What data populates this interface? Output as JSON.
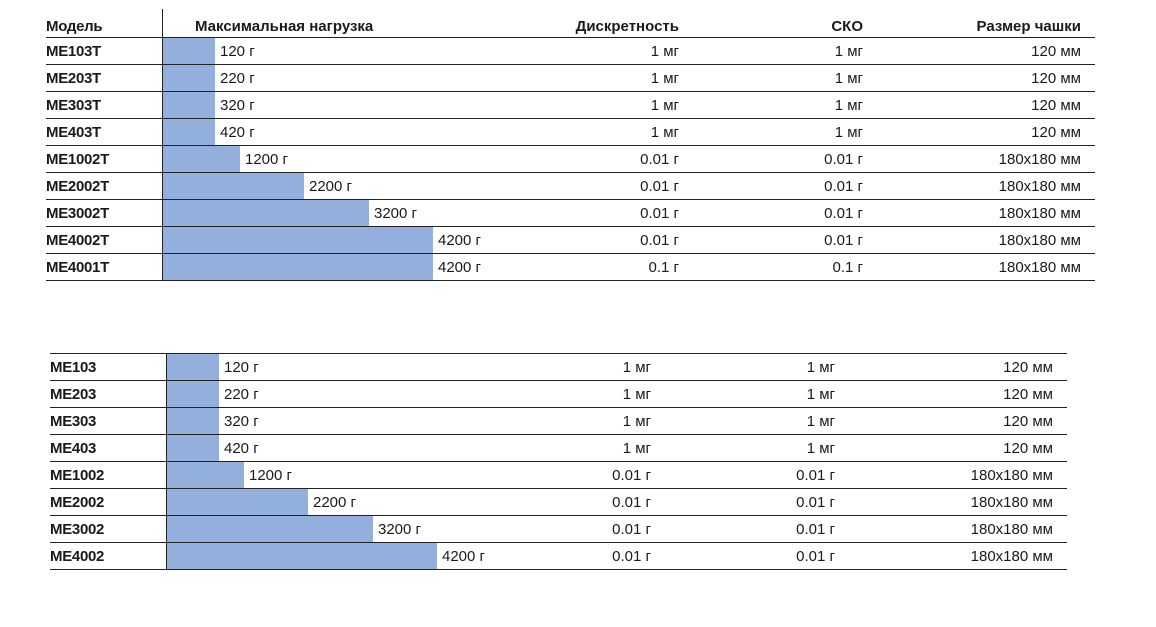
{
  "headers": {
    "model": "Модель",
    "max_load": "Максимальная нагрузка",
    "readability": "Дискретность",
    "repeatability": "СКО",
    "pan_size": "Размер чашки"
  },
  "load_scale_max_g": 4200,
  "colors": {
    "bar": "#93b0dd",
    "rule": "#222222"
  },
  "table_t": {
    "rows": [
      {
        "model": "ME103T",
        "load": "120 г",
        "load_g": 120,
        "readability": "1 мг",
        "repeatability": "1 мг",
        "pan": "120 мм"
      },
      {
        "model": "ME203T",
        "load": "220 г",
        "load_g": 220,
        "readability": "1 мг",
        "repeatability": "1 мг",
        "pan": "120 мм"
      },
      {
        "model": "ME303T",
        "load": "320 г",
        "load_g": 320,
        "readability": "1 мг",
        "repeatability": "1 мг",
        "pan": "120 мм"
      },
      {
        "model": "ME403T",
        "load": "420 г",
        "load_g": 420,
        "readability": "1 мг",
        "repeatability": "1 мг",
        "pan": "120 мм"
      },
      {
        "model": "ME1002T",
        "load": "1200 г",
        "load_g": 1200,
        "readability": "0.01 г",
        "repeatability": "0.01 г",
        "pan": "180x180 мм"
      },
      {
        "model": "ME2002T",
        "load": "2200 г",
        "load_g": 2200,
        "readability": "0.01 г",
        "repeatability": "0.01 г",
        "pan": "180x180 мм"
      },
      {
        "model": "ME3002T",
        "load": "3200 г",
        "load_g": 3200,
        "readability": "0.01 г",
        "repeatability": "0.01 г",
        "pan": "180x180 мм"
      },
      {
        "model": "ME4002T",
        "load": "4200 г",
        "load_g": 4200,
        "readability": "0.01 г",
        "repeatability": "0.01 г",
        "pan": "180x180 мм"
      },
      {
        "model": "ME4001T",
        "load": "4200 г",
        "load_g": 4200,
        "readability": "0.1 г",
        "repeatability": "0.1 г",
        "pan": "180x180 мм"
      }
    ]
  },
  "table_plain": {
    "rows": [
      {
        "model": "ME103",
        "load": "120 г",
        "load_g": 120,
        "readability": "1 мг",
        "repeatability": "1 мг",
        "pan": "120 мм"
      },
      {
        "model": "ME203",
        "load": "220 г",
        "load_g": 220,
        "readability": "1 мг",
        "repeatability": "1 мг",
        "pan": "120 мм"
      },
      {
        "model": "ME303",
        "load": "320 г",
        "load_g": 320,
        "readability": "1 мг",
        "repeatability": "1 мг",
        "pan": "120 мм"
      },
      {
        "model": "ME403",
        "load": "420 г",
        "load_g": 420,
        "readability": "1 мг",
        "repeatability": "1 мг",
        "pan": "120 мм"
      },
      {
        "model": "ME1002",
        "load": "1200 г",
        "load_g": 1200,
        "readability": "0.01 г",
        "repeatability": "0.01 г",
        "pan": "180x180 мм"
      },
      {
        "model": "ME2002",
        "load": "2200 г",
        "load_g": 2200,
        "readability": "0.01 г",
        "repeatability": "0.01 г",
        "pan": "180x180 мм"
      },
      {
        "model": "ME3002",
        "load": "3200 г",
        "load_g": 3200,
        "readability": "0.01 г",
        "repeatability": "0.01 г",
        "pan": "180x180 мм"
      },
      {
        "model": "ME4002",
        "load": "4200 г",
        "load_g": 4200,
        "readability": "0.01 г",
        "repeatability": "0.01 г",
        "pan": "180x180 мм"
      }
    ]
  }
}
